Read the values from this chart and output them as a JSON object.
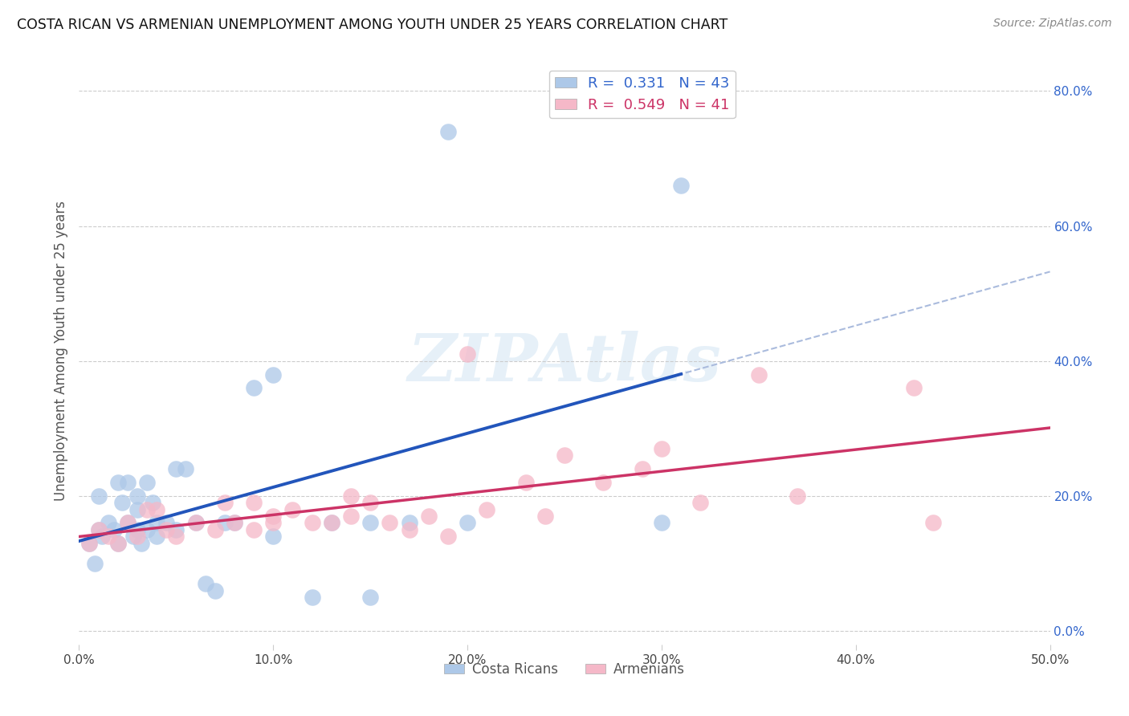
{
  "title": "COSTA RICAN VS ARMENIAN UNEMPLOYMENT AMONG YOUTH UNDER 25 YEARS CORRELATION CHART",
  "source": "Source: ZipAtlas.com",
  "ylabel": "Unemployment Among Youth under 25 years",
  "xlim": [
    0.0,
    0.5
  ],
  "ylim": [
    -0.02,
    0.85
  ],
  "x_ticks": [
    0.0,
    0.1,
    0.2,
    0.3,
    0.4,
    0.5
  ],
  "x_tick_labels": [
    "0.0%",
    "10.0%",
    "20.0%",
    "30.0%",
    "40.0%",
    "50.0%"
  ],
  "y_ticks_right": [
    0.0,
    0.2,
    0.4,
    0.6,
    0.8
  ],
  "y_tick_labels_right": [
    "0.0%",
    "20.0%",
    "40.0%",
    "60.0%",
    "80.0%"
  ],
  "grid_color": "#cccccc",
  "watermark_text": "ZIPAtlas",
  "costa_rica_color": "#adc8e8",
  "armenia_color": "#f5b8c8",
  "costa_rica_line_color": "#2255bb",
  "armenia_line_color": "#cc3366",
  "R_costa_rica": 0.331,
  "N_costa_rica": 43,
  "R_armenia": 0.549,
  "N_armenia": 41,
  "legend_entries": [
    "Costa Ricans",
    "Armenians"
  ],
  "costa_rican_x": [
    0.005,
    0.008,
    0.01,
    0.01,
    0.012,
    0.015,
    0.018,
    0.02,
    0.02,
    0.022,
    0.025,
    0.025,
    0.028,
    0.03,
    0.03,
    0.03,
    0.032,
    0.035,
    0.035,
    0.038,
    0.04,
    0.04,
    0.045,
    0.05,
    0.05,
    0.055,
    0.06,
    0.065,
    0.07,
    0.075,
    0.08,
    0.09,
    0.1,
    0.1,
    0.12,
    0.13,
    0.15,
    0.15,
    0.17,
    0.19,
    0.2,
    0.3,
    0.31
  ],
  "costa_rican_y": [
    0.13,
    0.1,
    0.15,
    0.2,
    0.14,
    0.16,
    0.15,
    0.13,
    0.22,
    0.19,
    0.16,
    0.22,
    0.14,
    0.15,
    0.18,
    0.2,
    0.13,
    0.22,
    0.15,
    0.19,
    0.14,
    0.16,
    0.16,
    0.15,
    0.24,
    0.24,
    0.16,
    0.07,
    0.06,
    0.16,
    0.16,
    0.36,
    0.14,
    0.38,
    0.05,
    0.16,
    0.05,
    0.16,
    0.16,
    0.74,
    0.16,
    0.16,
    0.66
  ],
  "armenian_x": [
    0.005,
    0.01,
    0.015,
    0.02,
    0.025,
    0.03,
    0.035,
    0.04,
    0.045,
    0.05,
    0.06,
    0.07,
    0.075,
    0.08,
    0.09,
    0.09,
    0.1,
    0.1,
    0.11,
    0.12,
    0.13,
    0.14,
    0.14,
    0.15,
    0.16,
    0.17,
    0.18,
    0.19,
    0.2,
    0.21,
    0.23,
    0.24,
    0.25,
    0.27,
    0.29,
    0.3,
    0.32,
    0.35,
    0.37,
    0.43,
    0.44
  ],
  "armenian_y": [
    0.13,
    0.15,
    0.14,
    0.13,
    0.16,
    0.14,
    0.18,
    0.18,
    0.15,
    0.14,
    0.16,
    0.15,
    0.19,
    0.16,
    0.15,
    0.19,
    0.16,
    0.17,
    0.18,
    0.16,
    0.16,
    0.2,
    0.17,
    0.19,
    0.16,
    0.15,
    0.17,
    0.14,
    0.41,
    0.18,
    0.22,
    0.17,
    0.26,
    0.22,
    0.24,
    0.27,
    0.19,
    0.38,
    0.2,
    0.36,
    0.16
  ]
}
